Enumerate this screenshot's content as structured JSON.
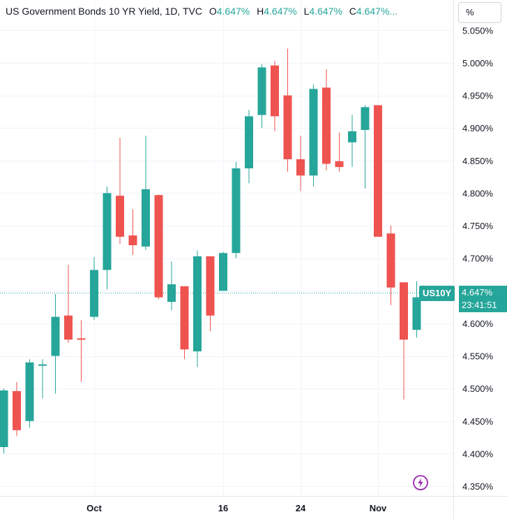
{
  "legend": {
    "symbol": "US Government Bonds 10 YR Yield, 1D, TVC",
    "open_label": "O",
    "open": "4.647%",
    "high_label": "H",
    "high": "4.647%",
    "low_label": "L",
    "low": "4.647%",
    "close_label": "C",
    "close": "4.647%...",
    "value_color": "#26a69a"
  },
  "unit_label": "%",
  "symbol_tag": "US10Y",
  "last_price": {
    "value": "4.647%",
    "countdown": "23:41:51"
  },
  "colors": {
    "up": "#26a69a",
    "down": "#ef5350",
    "grid": "#f0f3fa",
    "axis_text": "#131722",
    "logo": "#9c27b0"
  },
  "logo_icon": "lightning-icon",
  "chart_data": {
    "type": "candlestick",
    "title": "US Government Bonds 10 YR Yield, 1D, TVC",
    "ylim": [
      4.33,
      5.06
    ],
    "yticks": [
      "5.050%",
      "5.000%",
      "4.950%",
      "4.900%",
      "4.850%",
      "4.800%",
      "4.750%",
      "4.700%",
      "4.650%",
      "4.600%",
      "4.550%",
      "4.500%",
      "4.450%",
      "4.400%",
      "4.350%"
    ],
    "ytick_values": [
      5.05,
      5.0,
      4.95,
      4.9,
      4.85,
      4.8,
      4.75,
      4.7,
      4.65,
      4.6,
      4.55,
      4.5,
      4.45,
      4.4,
      4.35
    ],
    "xticks": [
      {
        "label": "Oct",
        "index": 7
      },
      {
        "label": "16",
        "index": 17
      },
      {
        "label": "24",
        "index": 23
      },
      {
        "label": "Nov",
        "index": 29
      }
    ],
    "last_value": 4.647,
    "grid": true,
    "candles": [
      {
        "o": 4.41,
        "h": 4.5,
        "l": 4.4,
        "c": 4.497
      },
      {
        "o": 4.496,
        "h": 4.51,
        "l": 4.427,
        "c": 4.436
      },
      {
        "o": 4.45,
        "h": 4.545,
        "l": 4.44,
        "c": 4.54
      },
      {
        "o": 4.537,
        "h": 4.545,
        "l": 4.485,
        "c": 4.537
      },
      {
        "o": 4.55,
        "h": 4.645,
        "l": 4.492,
        "c": 4.61
      },
      {
        "o": 4.612,
        "h": 4.69,
        "l": 4.57,
        "c": 4.575
      },
      {
        "o": 4.577,
        "h": 4.605,
        "l": 4.51,
        "c": 4.575
      },
      {
        "o": 4.61,
        "h": 4.702,
        "l": 4.605,
        "c": 4.682
      },
      {
        "o": 4.682,
        "h": 4.81,
        "l": 4.652,
        "c": 4.8
      },
      {
        "o": 4.796,
        "h": 4.885,
        "l": 4.722,
        "c": 4.733
      },
      {
        "o": 4.735,
        "h": 4.775,
        "l": 4.705,
        "c": 4.72
      },
      {
        "o": 4.718,
        "h": 4.888,
        "l": 4.713,
        "c": 4.806
      },
      {
        "o": 4.797,
        "h": 4.798,
        "l": 4.637,
        "c": 4.64
      },
      {
        "o": 4.633,
        "h": 4.695,
        "l": 4.62,
        "c": 4.66
      },
      {
        "o": 4.657,
        "h": 4.657,
        "l": 4.545,
        "c": 4.56
      },
      {
        "o": 4.557,
        "h": 4.712,
        "l": 4.533,
        "c": 4.703
      },
      {
        "o": 4.703,
        "h": 4.703,
        "l": 4.588,
        "c": 4.612
      },
      {
        "o": 4.65,
        "h": 4.71,
        "l": 4.65,
        "c": 4.708
      },
      {
        "o": 4.708,
        "h": 4.848,
        "l": 4.7,
        "c": 4.838
      },
      {
        "o": 4.838,
        "h": 4.928,
        "l": 4.815,
        "c": 4.918
      },
      {
        "o": 4.92,
        "h": 4.998,
        "l": 4.9,
        "c": 4.993
      },
      {
        "o": 4.996,
        "h": 5.003,
        "l": 4.895,
        "c": 4.918
      },
      {
        "o": 4.95,
        "h": 5.022,
        "l": 4.833,
        "c": 4.852
      },
      {
        "o": 4.852,
        "h": 4.888,
        "l": 4.803,
        "c": 4.827
      },
      {
        "o": 4.827,
        "h": 4.967,
        "l": 4.81,
        "c": 4.96
      },
      {
        "o": 4.962,
        "h": 4.99,
        "l": 4.835,
        "c": 4.845
      },
      {
        "o": 4.849,
        "h": 4.893,
        "l": 4.833,
        "c": 4.84
      },
      {
        "o": 4.878,
        "h": 4.92,
        "l": 4.84,
        "c": 4.895
      },
      {
        "o": 4.897,
        "h": 4.935,
        "l": 4.807,
        "c": 4.932
      },
      {
        "o": 4.935,
        "h": 4.935,
        "l": 4.733,
        "c": 4.733
      },
      {
        "o": 4.738,
        "h": 4.75,
        "l": 4.628,
        "c": 4.655
      },
      {
        "o": 4.663,
        "h": 4.663,
        "l": 4.483,
        "c": 4.575
      },
      {
        "o": 4.59,
        "h": 4.665,
        "l": 4.578,
        "c": 4.64
      }
    ]
  }
}
